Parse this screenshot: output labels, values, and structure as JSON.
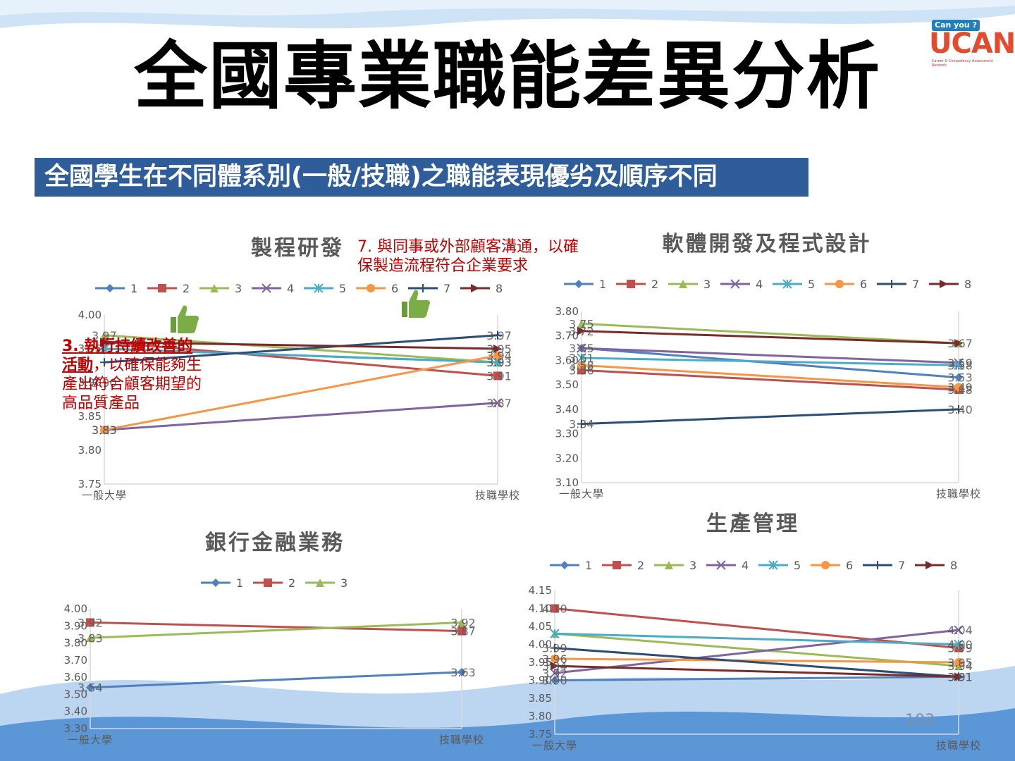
{
  "slide": {
    "title": "全國專業職能差異分析",
    "subtitle": "全國學生在不同體系別(一般/技職)之職能表現優劣及順序不同",
    "page_number": "103",
    "logo": {
      "tag": "Can you ?",
      "text": "UCAN",
      "tagline": "Career & Competency Assessment Network"
    },
    "annotation_process": "7. 與同事或外部顧客溝通，以確保製造流程符合企業要求",
    "annotation_left_bold": "3. 執行持續改善的活動",
    "annotation_left_rest": "，以確保能夠生產出符合顧客期望的高品質產品",
    "icons": [
      "thumbs-up-icon",
      "thumbs-up-icon"
    ],
    "colors": {
      "subtitle_bg": "#2e5d99",
      "annotation": "#c00000"
    }
  },
  "chart_data": [
    {
      "id": "process",
      "type": "line",
      "title": "製程研發",
      "categories": [
        "一般大學",
        "技職學校"
      ],
      "ylim": [
        3.75,
        4.0
      ],
      "yticks": [
        "3.75",
        "3.80",
        "3.85",
        "3.90",
        "3.95",
        "4.00"
      ],
      "legend": "top",
      "series": [
        {
          "name": "1",
          "values": [
            3.95,
            3.93
          ]
        },
        {
          "name": "2",
          "values": [
            3.96,
            3.91
          ]
        },
        {
          "name": "3",
          "values": [
            3.97,
            3.93
          ]
        },
        {
          "name": "4",
          "values": [
            3.83,
            3.87
          ]
        },
        {
          "name": "5",
          "values": [
            3.95,
            3.93
          ]
        },
        {
          "name": "6",
          "values": [
            3.83,
            3.94
          ]
        },
        {
          "name": "7",
          "values": [
            3.93,
            3.97
          ]
        },
        {
          "name": "8",
          "values": [
            3.96,
            3.95
          ]
        }
      ],
      "labels_left": [
        "3.97",
        "3.83",
        "3.83",
        "3.90"
      ],
      "labels_right": [
        "3.97",
        "3.95",
        "3.94",
        "3.93",
        "3.93",
        "3.91",
        "3.87"
      ]
    },
    {
      "id": "software",
      "type": "line",
      "title": "軟體開發及程式設計",
      "categories": [
        "一般大學",
        "技職學校"
      ],
      "ylim": [
        3.1,
        3.8
      ],
      "yticks": [
        "3.10",
        "3.20",
        "3.30",
        "3.40",
        "3.50",
        "3.60",
        "3.70",
        "3.80"
      ],
      "legend": "top",
      "series": [
        {
          "name": "1",
          "values": [
            3.65,
            3.53
          ]
        },
        {
          "name": "2",
          "values": [
            3.56,
            3.48
          ]
        },
        {
          "name": "3",
          "values": [
            3.75,
            3.67
          ]
        },
        {
          "name": "4",
          "values": [
            3.65,
            3.59
          ]
        },
        {
          "name": "5",
          "values": [
            3.61,
            3.58
          ]
        },
        {
          "name": "6",
          "values": [
            3.58,
            3.49
          ]
        },
        {
          "name": "7",
          "values": [
            3.34,
            3.4
          ]
        },
        {
          "name": "8",
          "values": [
            3.72,
            3.67
          ]
        }
      ],
      "labels_left": [
        "3.75",
        "3.72",
        "3.65",
        "3.61",
        "3.58",
        "3.56",
        "3.34"
      ],
      "labels_right": [
        "3.67",
        "3.59",
        "3.58",
        "3.53",
        "3.49",
        "3.48",
        "3.40"
      ]
    },
    {
      "id": "banking",
      "type": "line",
      "title": "銀行金融業務",
      "categories": [
        "一般大學",
        "技職學校"
      ],
      "ylim": [
        3.3,
        4.0
      ],
      "yticks": [
        "3.30",
        "3.40",
        "3.50",
        "3.60",
        "3.70",
        "3.80",
        "3.90",
        "4.00"
      ],
      "legend": "top",
      "series": [
        {
          "name": "1",
          "values": [
            3.54,
            3.63
          ]
        },
        {
          "name": "2",
          "values": [
            3.92,
            3.87
          ]
        },
        {
          "name": "3",
          "values": [
            3.83,
            3.92
          ]
        }
      ],
      "labels_left": [
        "3.92",
        "3.83",
        "3.54"
      ],
      "labels_right": [
        "3.92",
        "3.87",
        "3.63"
      ]
    },
    {
      "id": "production",
      "type": "line",
      "title": "生產管理",
      "categories": [
        "一般大學",
        "技職學校"
      ],
      "ylim": [
        3.75,
        4.15
      ],
      "yticks": [
        "3.75",
        "3.80",
        "3.85",
        "3.90",
        "3.95",
        "4.00",
        "4.05",
        "4.10",
        "4.15"
      ],
      "legend": "top",
      "series": [
        {
          "name": "1",
          "values": [
            3.9,
            3.91
          ]
        },
        {
          "name": "2",
          "values": [
            4.1,
            3.99
          ]
        },
        {
          "name": "3",
          "values": [
            4.03,
            3.94
          ]
        },
        {
          "name": "4",
          "values": [
            3.92,
            4.04
          ]
        },
        {
          "name": "5",
          "values": [
            4.03,
            4.0
          ]
        },
        {
          "name": "6",
          "values": [
            3.96,
            3.95
          ]
        },
        {
          "name": "7",
          "values": [
            3.99,
            3.91
          ]
        },
        {
          "name": "8",
          "values": [
            3.94,
            3.91
          ]
        }
      ],
      "labels_left": [
        "4.10",
        "3.99",
        "3.96",
        "3.94",
        "3.92",
        "3.90"
      ],
      "labels_right": [
        "4.04",
        "4.00",
        "3.99",
        "3.95",
        "3.94",
        "3.91",
        "3.91"
      ]
    }
  ]
}
